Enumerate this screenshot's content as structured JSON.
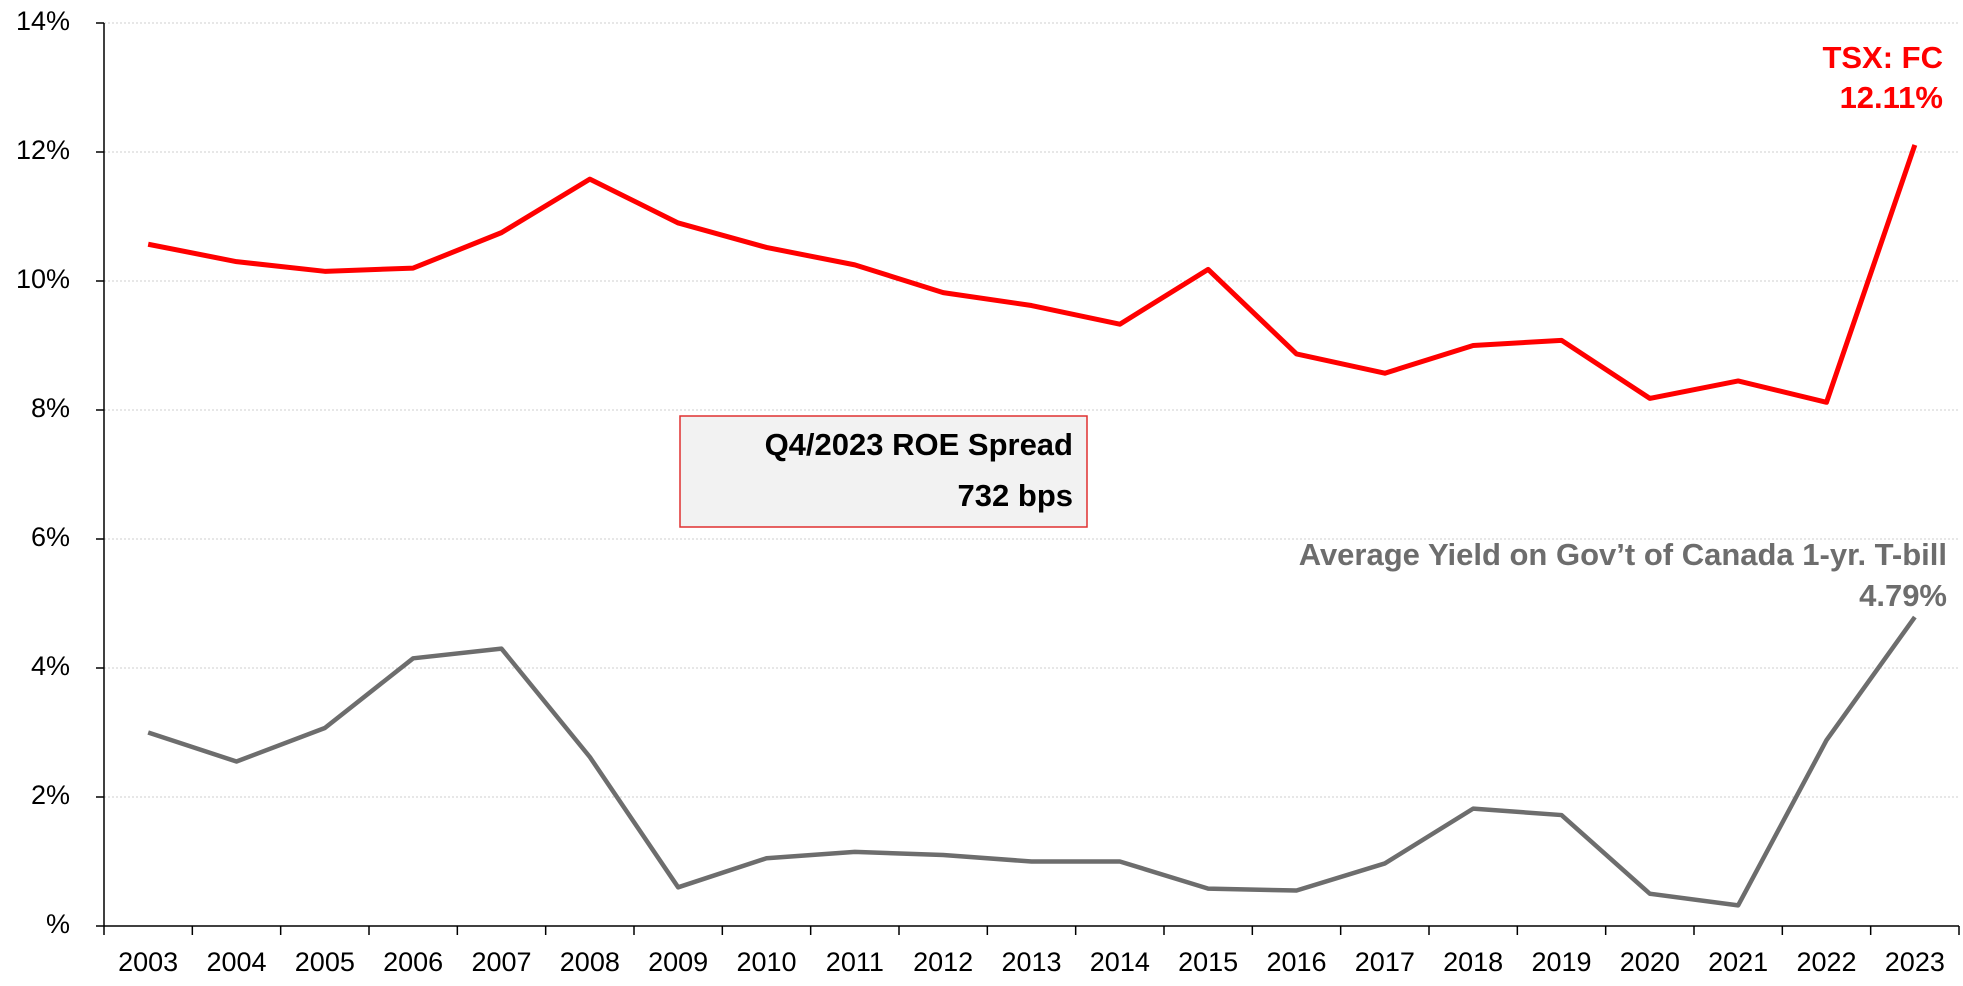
{
  "chart_data": {
    "type": "line",
    "categories": [
      "2003",
      "2004",
      "2005",
      "2006",
      "2007",
      "2008",
      "2009",
      "2010",
      "2011",
      "2012",
      "2013",
      "2014",
      "2015",
      "2016",
      "2017",
      "2018",
      "2019",
      "2020",
      "2021",
      "2022",
      "2023"
    ],
    "series": [
      {
        "name": "TSX: FC",
        "color": "#ff0000",
        "values": [
          10.57,
          10.3,
          10.15,
          10.2,
          10.75,
          11.58,
          10.9,
          10.52,
          10.25,
          9.82,
          9.62,
          9.33,
          10.18,
          8.87,
          8.57,
          9.0,
          9.08,
          8.18,
          8.45,
          8.12,
          12.11
        ],
        "value_labels": [
          null,
          null,
          null,
          null,
          null,
          null,
          null,
          null,
          null,
          null,
          null,
          null,
          null,
          null,
          null,
          null,
          null,
          null,
          null,
          null,
          "12.11%"
        ]
      },
      {
        "name": "Average Yield on Gov’t of Canada 1-yr. T-bill",
        "color": "#6d6d6d",
        "values": [
          3.0,
          2.55,
          3.07,
          4.15,
          4.3,
          2.62,
          0.6,
          1.05,
          1.15,
          1.1,
          1.0,
          1.0,
          0.58,
          0.55,
          0.97,
          1.82,
          1.72,
          0.5,
          0.32,
          2.88,
          4.79
        ],
        "value_labels": [
          null,
          null,
          null,
          null,
          null,
          null,
          null,
          null,
          null,
          null,
          null,
          null,
          null,
          null,
          null,
          null,
          null,
          null,
          null,
          null,
          "4.79%"
        ]
      }
    ],
    "annotations": [
      "Q4/2023 ROE Spread",
      "732 bps"
    ],
    "ylim": [
      0,
      14
    ],
    "yticks": [
      {
        "value": 0,
        "label": "%"
      },
      {
        "value": 2,
        "label": "2%"
      },
      {
        "value": 4,
        "label": "4%"
      },
      {
        "value": 6,
        "label": "6%"
      },
      {
        "value": 8,
        "label": "8%"
      },
      {
        "value": 10,
        "label": "10%"
      },
      {
        "value": 12,
        "label": "12%"
      },
      {
        "value": 14,
        "label": "14%"
      }
    ],
    "grid": true
  }
}
